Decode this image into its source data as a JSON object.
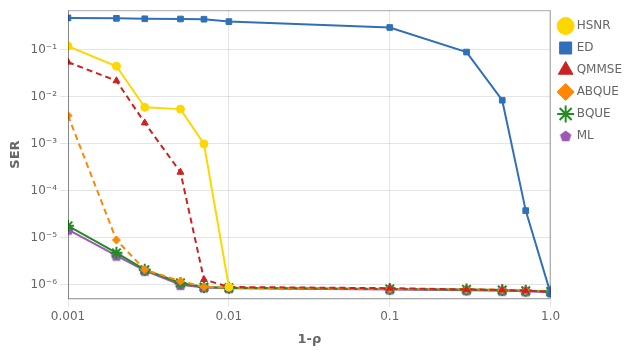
{
  "chart_data": {
    "type": "line",
    "x_label": "1-ρ",
    "y_label": "SER",
    "log": true,
    "xlim": [
      0.001,
      1.0
    ],
    "ylim": [
      5e-07,
      0.7
    ],
    "xticks": [
      0.001,
      0.01,
      0.1,
      {
        "value": 1.0,
        "label": "1.0"
      }
    ],
    "yticks": [
      {
        "value": 1e-06,
        "label": "10⁻⁶"
      },
      {
        "value": 1e-05,
        "label": "10⁻⁵"
      },
      {
        "value": 0.0001,
        "label": "10⁻⁴"
      },
      {
        "value": 0.001,
        "label": "10⁻³"
      },
      {
        "value": 0.01,
        "label": "10⁻²"
      },
      {
        "value": 0.1,
        "label": "10⁻¹"
      }
    ],
    "grid": true,
    "legend": "upper right",
    "series": [
      {
        "name": "HSNR",
        "color": "#FFD700",
        "marker": "circle",
        "line_style": "solid",
        "x": [
          0.001,
          0.002,
          0.003,
          0.005,
          0.007,
          0.01
        ],
        "values": [
          0.12,
          0.045,
          0.006,
          0.0055,
          0.001,
          9e-07
        ]
      },
      {
        "name": "ED",
        "color": "#3070b8",
        "marker": "square",
        "line_style": "solid",
        "x": [
          0.001,
          0.002,
          0.003,
          0.005,
          0.007,
          0.01,
          0.1,
          0.3,
          0.5,
          0.7,
          1.0
        ],
        "values": [
          0.48,
          0.47,
          0.46,
          0.455,
          0.45,
          0.4,
          0.3,
          0.09,
          0.0085,
          3.8e-05,
          6.5e-07
        ]
      },
      {
        "name": "QMMSE",
        "color": "#cc2222",
        "marker": "triangle",
        "line_style": "dashed",
        "x": [
          0.001,
          0.002,
          0.003,
          0.005,
          0.007,
          0.01,
          0.1,
          0.3,
          0.5,
          0.7,
          1.0
        ],
        "values": [
          0.055,
          0.022,
          0.0028,
          0.00025,
          1.3e-06,
          9e-07,
          8.5e-07,
          8e-07,
          7.8e-07,
          7.5e-07,
          7.2e-07
        ]
      },
      {
        "name": "ABQUE",
        "color": "#ff8800",
        "marker": "diamond",
        "line_style": "dashed",
        "x": [
          0.001,
          0.002,
          0.003,
          0.005,
          0.007,
          0.01,
          0.1,
          0.3,
          0.5,
          0.7,
          1.0
        ],
        "values": [
          0.004,
          9e-06,
          2.1e-06,
          1.2e-06,
          9e-07,
          8.7e-07,
          8.2e-07,
          8e-07,
          7.8e-07,
          7.5e-07,
          7.2e-07
        ]
      },
      {
        "name": "BQUE",
        "color": "#228b22",
        "marker": "star",
        "line_style": "solid",
        "x": [
          0.001,
          0.002,
          0.003,
          0.005,
          0.007,
          0.01,
          0.1,
          0.3,
          0.5,
          0.7,
          1.0
        ],
        "values": [
          1.8e-05,
          4.8e-06,
          2.1e-06,
          1.1e-06,
          9e-07,
          8.7e-07,
          8.2e-07,
          8e-07,
          7.8e-07,
          7.5e-07,
          7.2e-07
        ]
      },
      {
        "name": "ML",
        "color": "#9b59b6",
        "marker": "pentagon",
        "line_style": "solid",
        "x": [
          0.001,
          0.002,
          0.003,
          0.005,
          0.007,
          0.01,
          0.1,
          0.3,
          0.5,
          0.7,
          1.0
        ],
        "values": [
          1.5e-05,
          4.2e-06,
          2e-06,
          1e-06,
          8.8e-07,
          8.5e-07,
          8e-07,
          7.7e-07,
          7.5e-07,
          7.3e-07,
          7e-07
        ]
      }
    ]
  }
}
